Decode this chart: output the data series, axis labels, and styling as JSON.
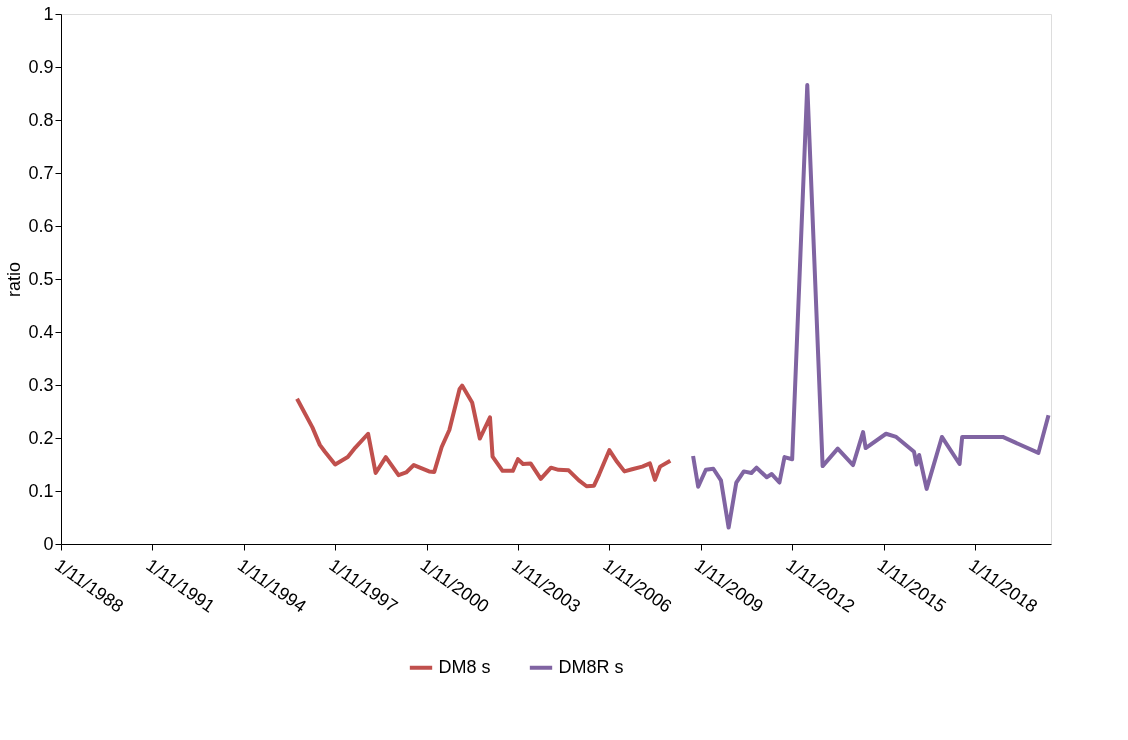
{
  "chart_data": {
    "type": "line",
    "ylabel": "ratio",
    "xlim": [
      "1988-11-01",
      "2021-05-01"
    ],
    "xticks": [
      {
        "value": "1988-11-01",
        "label": "1/11/1988"
      },
      {
        "value": "1991-11-01",
        "label": "1/11/1991"
      },
      {
        "value": "1994-11-01",
        "label": "1/11/1994"
      },
      {
        "value": "1997-11-01",
        "label": "1/11/1997"
      },
      {
        "value": "2000-11-01",
        "label": "1/11/2000"
      },
      {
        "value": "2003-11-01",
        "label": "1/11/2003"
      },
      {
        "value": "2006-11-01",
        "label": "1/11/2006"
      },
      {
        "value": "2009-11-01",
        "label": "1/11/2009"
      },
      {
        "value": "2012-11-01",
        "label": "1/11/2012"
      },
      {
        "value": "2015-11-01",
        "label": "1/11/2015"
      },
      {
        "value": "2018-11-01",
        "label": "1/11/2018"
      }
    ],
    "ylim": [
      0,
      1
    ],
    "yticks": [
      0,
      0.1,
      0.2,
      0.3,
      0.4,
      0.5,
      0.6,
      0.7,
      0.8,
      0.9,
      1
    ],
    "grid": false,
    "legend": "bottom",
    "marker": "none",
    "line_style": "solid",
    "series": [
      {
        "name": "DM8 s",
        "color": "#c0504d",
        "x": [
          "1996-08",
          "1997-02",
          "1997-05",
          "1997-07",
          "1997-11",
          "1998-04",
          "1998-07",
          "1998-12",
          "1999-03",
          "1999-07",
          "1999-12",
          "2000-03",
          "2000-06",
          "2000-12",
          "2001-02",
          "2001-05",
          "2001-08",
          "2001-12",
          "2002-01",
          "2002-05",
          "2002-08",
          "2002-12",
          "2003-01",
          "2003-05",
          "2003-09",
          "2003-11",
          "2004-01",
          "2004-04",
          "2004-08",
          "2004-12",
          "2005-03",
          "2005-07",
          "2005-11",
          "2006-02",
          "2006-05",
          "2006-07",
          "2006-11",
          "2007-02",
          "2007-05",
          "2007-08",
          "2007-12",
          "2008-03",
          "2008-05",
          "2008-07",
          "2008-11"
        ],
        "values": [
          0.274,
          0.22,
          0.187,
          0.174,
          0.15,
          0.164,
          0.182,
          0.208,
          0.134,
          0.164,
          0.13,
          0.135,
          0.149,
          0.137,
          0.136,
          0.183,
          0.215,
          0.292,
          0.299,
          0.267,
          0.199,
          0.239,
          0.165,
          0.138,
          0.138,
          0.16,
          0.151,
          0.152,
          0.123,
          0.144,
          0.14,
          0.139,
          0.12,
          0.109,
          0.11,
          0.131,
          0.177,
          0.155,
          0.137,
          0.141,
          0.146,
          0.152,
          0.121,
          0.146,
          0.157
        ]
      },
      {
        "name": "DM8R s",
        "color": "#8064a2",
        "x": [
          "2009-08",
          "2009-10",
          "2010-01",
          "2010-04",
          "2010-07",
          "2010-10",
          "2011-01",
          "2011-04",
          "2011-07",
          "2011-09",
          "2012-01",
          "2012-03",
          "2012-06",
          "2012-08",
          "2012-11",
          "2013-05",
          "2013-11",
          "2014-05",
          "2014-11",
          "2015-03",
          "2015-04",
          "2015-12",
          "2016-04",
          "2016-11",
          "2016-12",
          "2017-01",
          "2017-04",
          "2017-10",
          "2018-05",
          "2018-06",
          "2019-10",
          "2020-12",
          "2021-04"
        ],
        "values": [
          0.166,
          0.108,
          0.14,
          0.142,
          0.12,
          0.031,
          0.116,
          0.137,
          0.134,
          0.144,
          0.126,
          0.132,
          0.116,
          0.164,
          0.16,
          0.866,
          0.147,
          0.18,
          0.149,
          0.211,
          0.181,
          0.208,
          0.202,
          0.174,
          0.15,
          0.168,
          0.104,
          0.202,
          0.151,
          0.202,
          0.202,
          0.172,
          0.243
        ]
      }
    ]
  }
}
